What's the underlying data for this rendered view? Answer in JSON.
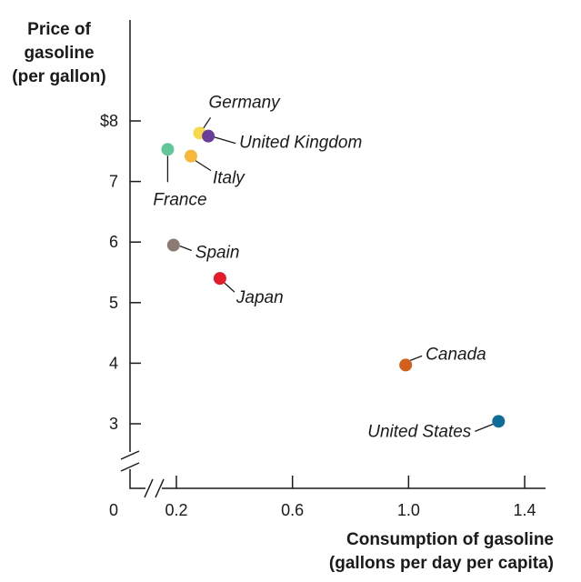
{
  "chart_data": {
    "type": "scatter",
    "ylabel_lines": [
      "Price of",
      "gasoline",
      "(per gallon)"
    ],
    "xlabel_lines": [
      "Consumption of gasoline",
      "(gallons per day per capita)"
    ],
    "x_ticks": [
      {
        "value": 0.2,
        "label": "0.2"
      },
      {
        "value": 0.6,
        "label": "0.6"
      },
      {
        "value": 1.0,
        "label": "1.0"
      },
      {
        "value": 1.4,
        "label": "1.4"
      }
    ],
    "y_ticks": [
      {
        "value": 3,
        "label": "3"
      },
      {
        "value": 4,
        "label": "4"
      },
      {
        "value": 5,
        "label": "5"
      },
      {
        "value": 6,
        "label": "6"
      },
      {
        "value": 7,
        "label": "7"
      },
      {
        "value": 8,
        "label": "$8"
      }
    ],
    "origin_label": "0",
    "axis_breaks": {
      "x": true,
      "y": true
    },
    "xlim": [
      0.15,
      1.52
    ],
    "ylim": [
      2.3,
      9.7
    ],
    "points": [
      {
        "name": "Germany",
        "x": 0.28,
        "y": 7.8,
        "color": "#f7d94c"
      },
      {
        "name": "United Kingdom",
        "x": 0.31,
        "y": 7.75,
        "color": "#6a3d9a"
      },
      {
        "name": "Italy",
        "x": 0.25,
        "y": 7.42,
        "color": "#f6b73c"
      },
      {
        "name": "France",
        "x": 0.17,
        "y": 7.53,
        "color": "#63c69b"
      },
      {
        "name": "Spain",
        "x": 0.19,
        "y": 5.95,
        "color": "#8c7b75"
      },
      {
        "name": "Japan",
        "x": 0.35,
        "y": 5.4,
        "color": "#e31b2a"
      },
      {
        "name": "Canada",
        "x": 0.99,
        "y": 3.97,
        "color": "#d2601a"
      },
      {
        "name": "United States",
        "x": 1.31,
        "y": 3.04,
        "color": "#0e6e99"
      }
    ]
  }
}
